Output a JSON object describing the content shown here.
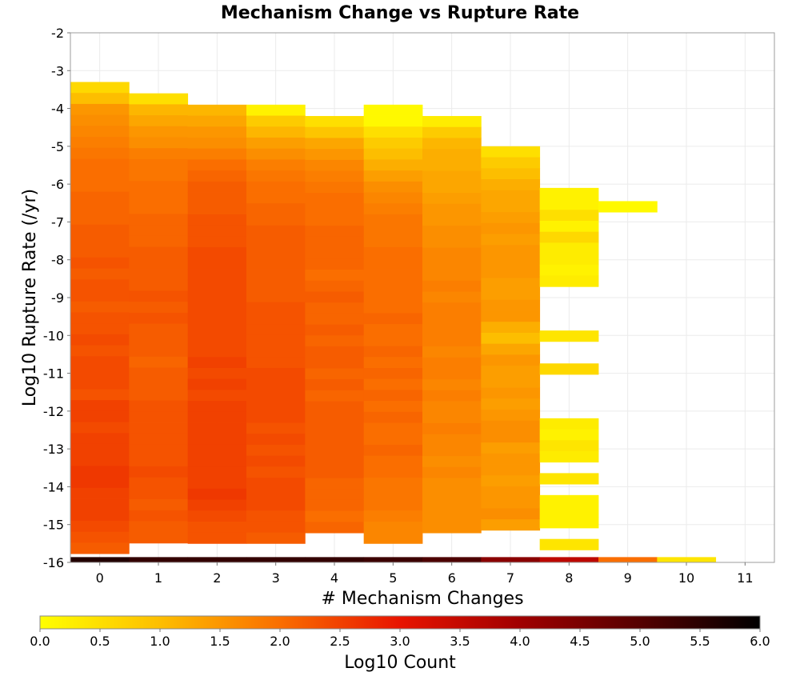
{
  "chart_data": {
    "type": "heatmap",
    "title": "Mechanism Change vs Rupture Rate",
    "xlabel": "# Mechanism Changes",
    "ylabel": "Log10 Rupture Rate (/yr)",
    "colorbar_label": "Log10 Count",
    "x_ticks": [
      "0",
      "1",
      "2",
      "3",
      "4",
      "5",
      "6",
      "7",
      "8",
      "9",
      "10",
      "11"
    ],
    "y_ticks": [
      "-2",
      "-3",
      "-4",
      "-5",
      "-6",
      "-7",
      "-8",
      "-9",
      "-10",
      "-11",
      "-12",
      "-13",
      "-14",
      "-15",
      "-16"
    ],
    "colorbar_ticks": [
      "0.0",
      "0.5",
      "1.0",
      "1.5",
      "2.0",
      "2.5",
      "3.0",
      "3.5",
      "4.0",
      "4.5",
      "5.0",
      "5.5",
      "6.0"
    ],
    "xlim": [
      -0.5,
      11.5
    ],
    "ylim": [
      -16,
      -2
    ],
    "clim": [
      0,
      6
    ],
    "grid": true,
    "colormap": "heat (yellow to red to black)",
    "bin_height": 0.29,
    "columns": [
      {
        "x": 0,
        "top": -3.3,
        "values": [
          0.6,
          1.0,
          1.5,
          1.6,
          1.7,
          1.8,
          1.9,
          2.0,
          2.0,
          2.0,
          2.1,
          2.1,
          2.1,
          2.2,
          2.2,
          2.2,
          2.3,
          2.2,
          2.3,
          2.3,
          2.2,
          2.3,
          2.3,
          2.4,
          2.3,
          2.4,
          2.4,
          2.4,
          2.3,
          2.5,
          2.5,
          2.4,
          2.5,
          2.5,
          2.5,
          2.6,
          2.6,
          2.5,
          2.5,
          2.5,
          2.4,
          2.3,
          2.2
        ]
      },
      {
        "x": 1,
        "top": -3.6,
        "values": [
          0.5,
          1.1,
          1.3,
          1.5,
          1.6,
          1.8,
          1.9,
          1.9,
          2.0,
          2.0,
          2.0,
          2.1,
          2.1,
          2.1,
          2.2,
          2.2,
          2.2,
          2.2,
          2.3,
          2.2,
          2.3,
          2.2,
          2.2,
          2.2,
          2.1,
          2.2,
          2.2,
          2.2,
          2.3,
          2.3,
          2.3,
          2.3,
          2.3,
          2.3,
          2.4,
          2.3,
          2.3,
          2.2,
          2.3,
          2.2,
          2.2
        ]
      },
      {
        "x": 2,
        "top": -3.9,
        "values": [
          1.1,
          1.3,
          1.5,
          1.6,
          1.8,
          2.0,
          2.1,
          2.2,
          2.2,
          2.2,
          2.3,
          2.3,
          2.3,
          2.4,
          2.4,
          2.4,
          2.4,
          2.4,
          2.4,
          2.4,
          2.4,
          2.4,
          2.4,
          2.5,
          2.4,
          2.5,
          2.4,
          2.5,
          2.5,
          2.5,
          2.5,
          2.5,
          2.5,
          2.5,
          2.5,
          2.6,
          2.5,
          2.4,
          2.3,
          2.3
        ]
      },
      {
        "x": 3,
        "top": -3.9,
        "values": [
          0.2,
          0.8,
          1.1,
          1.4,
          1.6,
          1.8,
          1.9,
          2.0,
          2.0,
          2.1,
          2.1,
          2.2,
          2.2,
          2.2,
          2.2,
          2.2,
          2.2,
          2.2,
          2.3,
          2.3,
          2.3,
          2.3,
          2.3,
          2.3,
          2.4,
          2.4,
          2.4,
          2.4,
          2.4,
          2.3,
          2.4,
          2.3,
          2.4,
          2.3,
          2.4,
          2.4,
          2.4,
          2.3,
          2.3,
          2.2
        ]
      },
      {
        "x": 4,
        "top": -4.2,
        "values": [
          0.5,
          0.9,
          1.3,
          1.5,
          1.7,
          1.8,
          1.9,
          2.0,
          2.0,
          2.0,
          2.1,
          2.1,
          2.1,
          2.1,
          2.0,
          2.1,
          2.2,
          2.1,
          2.1,
          2.2,
          2.1,
          2.2,
          2.2,
          2.1,
          2.2,
          2.1,
          2.2,
          2.2,
          2.2,
          2.2,
          2.2,
          2.2,
          2.2,
          2.1,
          2.1,
          2.1,
          2.0,
          2.1
        ]
      },
      {
        "x": 5,
        "top": -3.9,
        "values": [
          0.1,
          0.1,
          0.5,
          0.8,
          1.0,
          1.2,
          1.4,
          1.6,
          1.7,
          1.8,
          1.9,
          1.9,
          1.9,
          2.0,
          2.0,
          2.0,
          2.0,
          2.0,
          2.0,
          2.1,
          2.0,
          2.0,
          2.1,
          2.0,
          2.1,
          2.0,
          2.1,
          2.0,
          2.1,
          2.0,
          2.0,
          2.1,
          2.0,
          2.0,
          1.9,
          1.9,
          1.9,
          1.8,
          1.7,
          1.7
        ]
      },
      {
        "x": 6,
        "top": -4.2,
        "values": [
          0.3,
          0.8,
          1.1,
          1.2,
          1.2,
          1.3,
          1.3,
          1.4,
          1.5,
          1.5,
          1.6,
          1.6,
          1.7,
          1.7,
          1.7,
          1.8,
          1.7,
          1.8,
          1.8,
          1.8,
          1.8,
          1.7,
          1.8,
          1.8,
          1.7,
          1.8,
          1.7,
          1.7,
          1.8,
          1.7,
          1.7,
          1.6,
          1.7,
          1.6,
          1.6,
          1.6,
          1.6,
          1.6
        ]
      },
      {
        "x": 7,
        "top": -5.0,
        "values": [
          0.5,
          0.8,
          1.0,
          1.2,
          1.3,
          1.3,
          1.4,
          1.5,
          1.4,
          1.5,
          1.5,
          1.5,
          1.4,
          1.4,
          1.5,
          1.5,
          1.2,
          1.0,
          1.3,
          1.5,
          1.4,
          1.4,
          1.5,
          1.4,
          1.5,
          1.6,
          1.6,
          1.4,
          1.5,
          1.5,
          1.4,
          1.5,
          1.5,
          1.6,
          1.4
        ]
      },
      {
        "x": 8,
        "top": -6.1,
        "values": [
          0.2,
          0.2,
          0.5,
          0.2,
          0.6,
          0.3,
          0.3,
          0.2,
          0.3,
          null,
          null,
          null,
          null,
          0.4,
          null,
          null,
          0.6,
          null,
          null,
          null,
          null,
          0.3,
          0.2,
          0.4,
          0.3,
          null,
          0.4,
          null,
          0.2,
          0.2,
          0.2,
          null,
          0.4
        ]
      },
      {
        "x": 9,
        "top": -6.45,
        "values": [
          0.1
        ]
      },
      {
        "x": 10,
        "top": null,
        "values": []
      },
      {
        "x": 11,
        "top": null,
        "values": []
      }
    ],
    "bottom_row": {
      "y_range": [
        -16.0,
        -15.86
      ],
      "values": [
        5.6,
        5.4,
        5.4,
        5.4,
        5.4,
        5.3,
        5.1,
        4.3,
        3.6,
        2.0,
        0.4,
        null
      ]
    }
  }
}
